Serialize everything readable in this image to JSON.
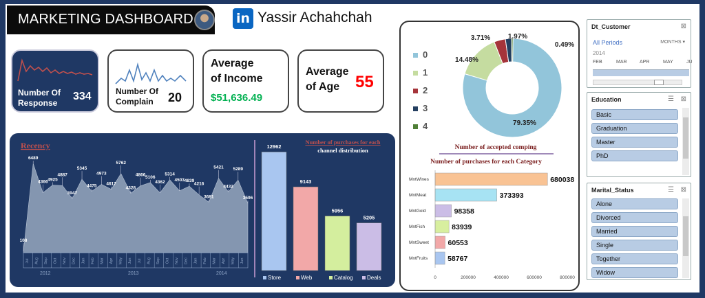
{
  "header": {
    "title": "MARKETING DASHBOARD",
    "author": "Yassir Achahchah",
    "linkedin_glyph": "in"
  },
  "kpis": {
    "response": {
      "label1": "Number Of",
      "label2": "Response",
      "value": "334"
    },
    "complain": {
      "label1": "Number Of",
      "label2": "Complain",
      "value": "20"
    },
    "income": {
      "label1": "Average",
      "label2": "of Income",
      "value": "$51,636.49"
    },
    "age": {
      "label1": "Average",
      "label2": "of Age",
      "value": "55"
    }
  },
  "recency": {
    "title": "Recency",
    "months": [
      "Jul",
      "Aug",
      "Sep",
      "Oct",
      "Nov",
      "Dec",
      "Jan",
      "Feb",
      "Mar",
      "Apr",
      "May",
      "Jun",
      "Jul",
      "Aug",
      "Sep",
      "Oct",
      "Nov",
      "Dec",
      "Jan",
      "Feb",
      "Mar",
      "Apr",
      "May",
      "Jun"
    ],
    "years": [
      "2012",
      "2013",
      "2014"
    ]
  },
  "chart_data": [
    {
      "type": "area",
      "title": "Recency",
      "labels": [
        108,
        6489,
        4366,
        4925,
        4887,
        3947,
        5345,
        4475,
        4973,
        4617,
        5762,
        4328,
        4866,
        5106,
        4362,
        5314,
        4503,
        4839,
        4216,
        3681,
        5421,
        4432,
        5289,
        3596
      ],
      "values": [
        108,
        6489,
        4366,
        4925,
        4887,
        3947,
        5345,
        4475,
        4973,
        4617,
        5762,
        4328,
        4866,
        5106,
        4362,
        5314,
        4503,
        4839,
        4216,
        3681,
        5421,
        4432,
        5289,
        3596
      ],
      "ylim": [
        0,
        7000
      ]
    },
    {
      "type": "bar",
      "title": "Number of purchases for each channel distribution",
      "categories": [
        "Store",
        "Web",
        "Catalog",
        "Deals"
      ],
      "values": [
        12962,
        9143,
        5956,
        5205
      ],
      "colors": [
        "#a9c6f0",
        "#f2a8a8",
        "#d4ee9e",
        "#cbbde6"
      ],
      "legend": "bottom"
    },
    {
      "type": "pie",
      "title": "Number of accepted comping",
      "categories": [
        "0",
        "1",
        "2",
        "3",
        "4"
      ],
      "values": [
        79.35,
        14.48,
        3.71,
        1.97,
        0.49
      ],
      "labels": [
        "79.35%",
        "14.48%",
        "3.71%",
        "1.97%",
        "0.49%"
      ],
      "colors": [
        "#92c5da",
        "#c5dca0",
        "#a5343a",
        "#243f60",
        "#4f7f36"
      ],
      "legend": "left"
    },
    {
      "type": "bar",
      "orientation": "horizontal",
      "title": "Number of purchases for each Category",
      "categories": [
        "MntWines",
        "MntMeat",
        "MntGold",
        "MntFish",
        "MntSweet",
        "MntFruits"
      ],
      "values": [
        680038,
        373393,
        98358,
        83939,
        60553,
        58767
      ],
      "colors": [
        "#f9c394",
        "#a7e3f3",
        "#cbbde6",
        "#d8ef9f",
        "#f2a8a8",
        "#a9c6f0"
      ],
      "xticks": [
        "0",
        "200000",
        "400000",
        "600000",
        "800000"
      ],
      "xlim": [
        0,
        800000
      ]
    }
  ],
  "slicers": {
    "date": {
      "title": "Dt_Customer",
      "period": "All Periods",
      "unit": "MONTHS",
      "year": "2014",
      "months": [
        "FEB",
        "MAR",
        "APR",
        "MAY",
        "JU"
      ]
    },
    "education": {
      "title": "Education",
      "items": [
        "Basic",
        "Graduation",
        "Master",
        "PhD"
      ]
    },
    "marital": {
      "title": "Marital_Status",
      "items": [
        "Alone",
        "Divorced",
        "Married",
        "Single",
        "Together",
        "Widow"
      ]
    }
  }
}
